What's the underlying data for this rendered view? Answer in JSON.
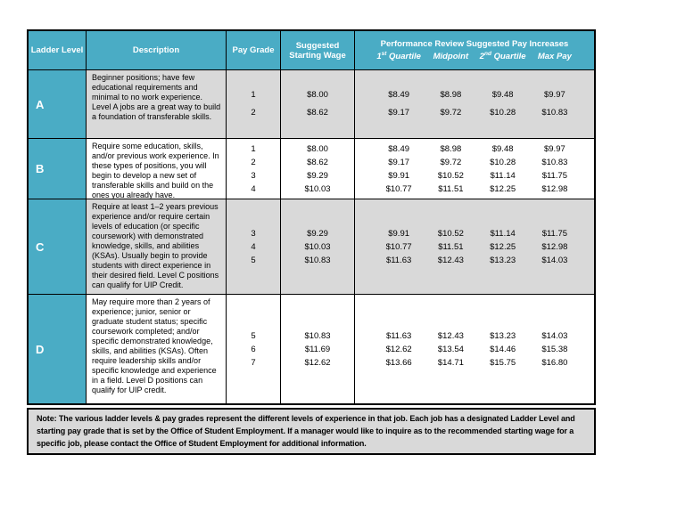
{
  "colors": {
    "header_teal": "#4AACC5",
    "row_gray": "#D9D9D9",
    "note_gray": "#D9D9D9",
    "border": "#000000",
    "header_text": "#ffffff"
  },
  "header": {
    "ladder_level": "Ladder Level",
    "description": "Description",
    "pay_grade": "Pay Grade",
    "starting_wage": "Suggested Starting Wage",
    "performance_title": "Performance Review Suggested Pay Increases",
    "q1_label": {
      "num": "1",
      "sup": "st",
      "rest": " Quartile"
    },
    "midpoint_label": "Midpoint",
    "q2_label": {
      "num": "2",
      "sup": "nd",
      "rest": " Quartile"
    },
    "max_pay_label": "Max Pay"
  },
  "rows": [
    {
      "level": "A",
      "description": "Beginner positions; have few educational requirements and minimal to no work experience. Level A jobs are a great way to build a foundation of transferable skills.",
      "pay_grades": [
        "1",
        "2"
      ],
      "starting_wages": [
        "$8.00",
        "$8.62"
      ],
      "q1": [
        "$8.49",
        "$9.17"
      ],
      "midpoint": [
        "$8.98",
        "$9.72"
      ],
      "q2": [
        "$9.48",
        "$10.28"
      ],
      "max_pay": [
        "$9.97",
        "$10.83"
      ]
    },
    {
      "level": "B",
      "description": "Require some education, skills, and/or previous work experience. In these types of positions, you will begin to develop a new set of transferable skills and build on the ones you already have.",
      "pay_grades": [
        "1",
        "2",
        "3",
        "4"
      ],
      "starting_wages": [
        "$8.00",
        "$8.62",
        "$9.29",
        "$10.03"
      ],
      "q1": [
        "$8.49",
        "$9.17",
        "$9.91",
        "$10.77"
      ],
      "midpoint": [
        "$8.98",
        "$9.72",
        "$10.52",
        "$11.51"
      ],
      "q2": [
        "$9.48",
        "$10.28",
        "$11.14",
        "$12.25"
      ],
      "max_pay": [
        "$9.97",
        "$10.83",
        "$11.75",
        "$12.98"
      ]
    },
    {
      "level": "C",
      "description": "Require at least 1–2 years previous experience and/or require certain levels of education (or specific coursework) with demonstrated knowledge, skills, and abilities (KSAs). Usually begin to provide students with direct experience in their desired field. Level C positions can qualify for UIP Credit.",
      "pay_grades": [
        "3",
        "4",
        "5"
      ],
      "starting_wages": [
        "$9.29",
        "$10.03",
        "$10.83"
      ],
      "q1": [
        "$9.91",
        "$10.77",
        "$11.63"
      ],
      "midpoint": [
        "$10.52",
        "$11.51",
        "$12.43"
      ],
      "q2": [
        "$11.14",
        "$12.25",
        "$13.23"
      ],
      "max_pay": [
        "$11.75",
        "$12.98",
        "$14.03"
      ]
    },
    {
      "level": "D",
      "description": "May require more than 2 years of experience; junior, senior or graduate student status; specific coursework completed; and/or specific demonstrated knowledge, skills, and abilities (KSAs). Often require leadership skills and/or specific knowledge and experience in a field. Level D positions can qualify for UIP credit.",
      "pay_grades": [
        "5",
        "6",
        "7"
      ],
      "starting_wages": [
        "$10.83",
        "$11.69",
        "$12.62"
      ],
      "q1": [
        "$11.63",
        "$12.62",
        "$13.66"
      ],
      "midpoint": [
        "$12.43",
        "$13.54",
        "$14.71"
      ],
      "q2": [
        "$13.23",
        "$14.46",
        "$15.75"
      ],
      "max_pay": [
        "$14.03",
        "$15.38",
        "$16.80"
      ]
    }
  ],
  "note": {
    "label": "Note:",
    "text": "The various ladder levels & pay grades represent the different levels of experience in that job.  Each job has a designated Ladder Level and starting pay grade that is set by the Office of Student Employment.  If a manager would like to inquire as to the recommended starting wage for a specific job, please contact the Office of Student Employment for additional information."
  }
}
